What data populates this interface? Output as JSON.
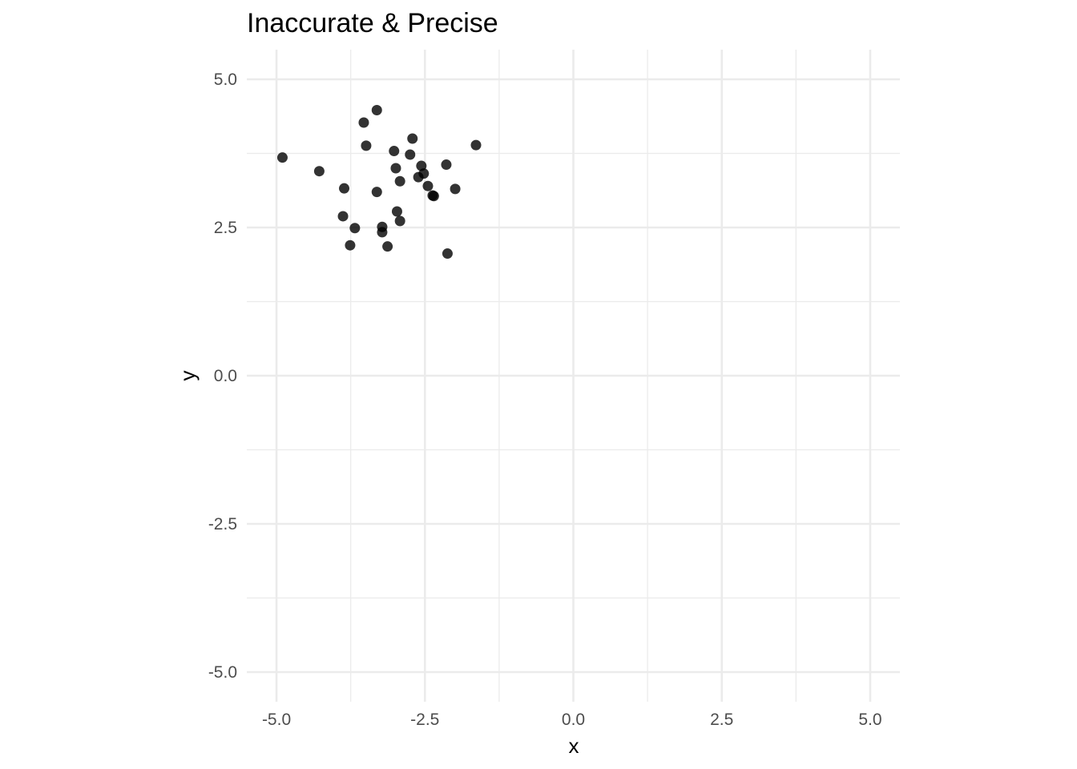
{
  "chart_data": {
    "type": "scatter",
    "title": "Inaccurate & Precise",
    "xlabel": "x",
    "ylabel": "y",
    "xlim": [
      -5.5,
      5.5
    ],
    "ylim": [
      -5.5,
      5.5
    ],
    "x_ticks": [
      -5.0,
      -2.5,
      0.0,
      2.5,
      5.0
    ],
    "y_ticks": [
      -5.0,
      -2.5,
      0.0,
      2.5,
      5.0
    ],
    "x_tick_labels": [
      "-5.0",
      "-2.5",
      "0.0",
      "2.5",
      "5.0"
    ],
    "y_tick_labels": [
      "-5.0",
      "-2.5",
      "0.0",
      "2.5",
      "5.0"
    ],
    "x_minor_ticks": [
      -3.75,
      -1.25,
      1.25,
      3.75
    ],
    "y_minor_ticks": [
      -3.75,
      -1.25,
      1.25,
      3.75
    ],
    "grid": true,
    "theme": "minimal",
    "point_color": "#000000",
    "point_alpha": 0.8,
    "points": [
      {
        "x": -4.9,
        "y": 3.68
      },
      {
        "x": -4.28,
        "y": 3.45
      },
      {
        "x": -3.86,
        "y": 3.16
      },
      {
        "x": -3.88,
        "y": 2.69
      },
      {
        "x": -3.68,
        "y": 2.49
      },
      {
        "x": -3.76,
        "y": 2.2
      },
      {
        "x": -3.53,
        "y": 4.27
      },
      {
        "x": -3.49,
        "y": 3.88
      },
      {
        "x": -3.31,
        "y": 4.48
      },
      {
        "x": -3.31,
        "y": 3.1
      },
      {
        "x": -3.22,
        "y": 2.51
      },
      {
        "x": -3.22,
        "y": 2.42
      },
      {
        "x": -3.13,
        "y": 2.18
      },
      {
        "x": -3.02,
        "y": 3.79
      },
      {
        "x": -2.99,
        "y": 3.5
      },
      {
        "x": -2.97,
        "y": 2.77
      },
      {
        "x": -2.92,
        "y": 3.28
      },
      {
        "x": -2.92,
        "y": 2.61
      },
      {
        "x": -2.75,
        "y": 3.73
      },
      {
        "x": -2.71,
        "y": 4.0
      },
      {
        "x": -2.61,
        "y": 3.35
      },
      {
        "x": -2.56,
        "y": 3.54
      },
      {
        "x": -2.52,
        "y": 3.41
      },
      {
        "x": -2.45,
        "y": 3.2
      },
      {
        "x": -2.37,
        "y": 3.04
      },
      {
        "x": -2.35,
        "y": 3.03
      },
      {
        "x": -2.14,
        "y": 3.56
      },
      {
        "x": -2.12,
        "y": 2.06
      },
      {
        "x": -1.99,
        "y": 3.15
      },
      {
        "x": -1.64,
        "y": 3.89
      }
    ]
  }
}
